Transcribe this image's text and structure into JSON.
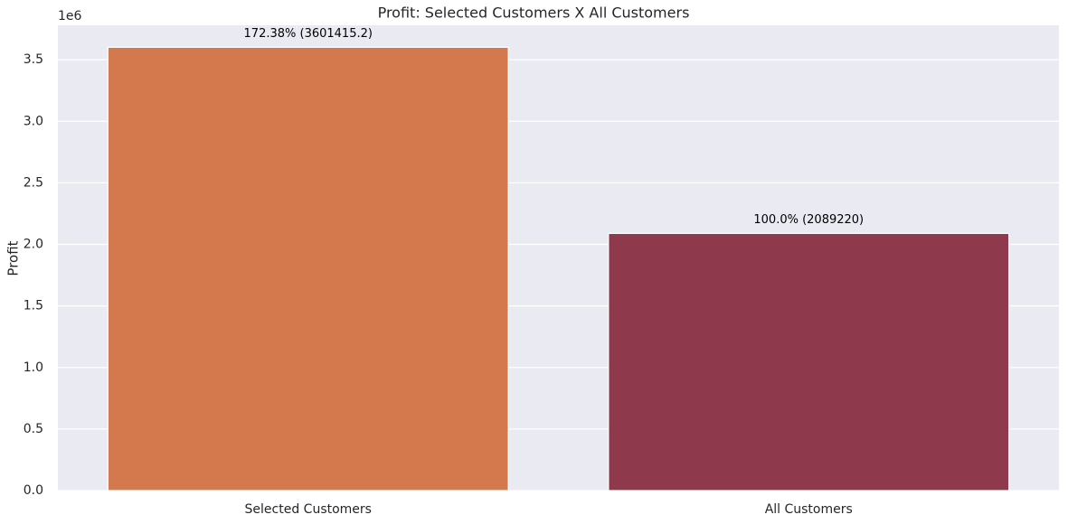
{
  "chart_data": {
    "type": "bar",
    "title": "Profit: Selected Customers X All Customers",
    "ylabel": "Profit",
    "y_offset_label": "1e6",
    "categories": [
      "Selected Customers",
      "All Customers"
    ],
    "values": [
      3601415.2,
      2089220
    ],
    "value_labels": [
      "172.38% (3601415.2)",
      "100.0% (2089220)"
    ],
    "colors": [
      "#d4784d",
      "#8e3a4c"
    ],
    "ylim": [
      0,
      3780000
    ],
    "yticks": [
      {
        "value": 0,
        "label": "0.0"
      },
      {
        "value": 500000,
        "label": "0.5"
      },
      {
        "value": 1000000,
        "label": "1.0"
      },
      {
        "value": 1500000,
        "label": "1.5"
      },
      {
        "value": 2000000,
        "label": "2.0"
      },
      {
        "value": 2500000,
        "label": "2.5"
      },
      {
        "value": 3000000,
        "label": "3.0"
      },
      {
        "value": 3500000,
        "label": "3.5"
      }
    ],
    "grid": true
  }
}
